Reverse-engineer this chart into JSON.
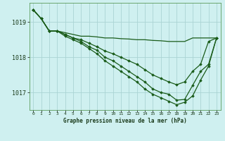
{
  "background_color": "#cff0f0",
  "grid_color": "#aad4d4",
  "line_color": "#1a5c1a",
  "title": "Graphe pression niveau de la mer (hPa)",
  "xlim": [
    -0.5,
    23.5
  ],
  "ylim": [
    1016.5,
    1019.55
  ],
  "yticks": [
    1017,
    1018,
    1019
  ],
  "xlabel_ticks": [
    0,
    1,
    2,
    3,
    4,
    5,
    6,
    7,
    8,
    9,
    10,
    11,
    12,
    13,
    14,
    15,
    16,
    17,
    18,
    19,
    20,
    21,
    22,
    23
  ],
  "series": [
    {
      "data": [
        1019.35,
        1019.1,
        1018.75,
        1018.75,
        1018.7,
        1018.65,
        1018.6,
        1018.6,
        1018.58,
        1018.55,
        1018.55,
        1018.53,
        1018.52,
        1018.5,
        1018.5,
        1018.48,
        1018.47,
        1018.45,
        1018.45,
        1018.45,
        1018.55,
        1018.55,
        1018.55,
        1018.55
      ],
      "marker": false
    },
    {
      "data": [
        1019.35,
        1019.1,
        1018.75,
        1018.75,
        1018.65,
        1018.55,
        1018.5,
        1018.4,
        1018.3,
        1018.18,
        1018.1,
        1018.0,
        1017.9,
        1017.8,
        1017.65,
        1017.5,
        1017.4,
        1017.3,
        1017.22,
        1017.3,
        1017.6,
        1017.8,
        1018.45,
        1018.55
      ],
      "marker": true
    },
    {
      "data": [
        1019.35,
        1019.1,
        1018.75,
        1018.75,
        1018.65,
        1018.55,
        1018.45,
        1018.3,
        1018.2,
        1018.0,
        1017.9,
        1017.75,
        1017.6,
        1017.45,
        1017.3,
        1017.1,
        1017.0,
        1016.95,
        1016.78,
        1016.8,
        1017.2,
        1017.6,
        1017.8,
        1018.55
      ],
      "marker": true
    },
    {
      "data": [
        1019.35,
        1019.1,
        1018.75,
        1018.75,
        1018.6,
        1018.5,
        1018.4,
        1018.25,
        1018.1,
        1017.9,
        1017.75,
        1017.6,
        1017.45,
        1017.3,
        1017.1,
        1016.95,
        1016.85,
        1016.75,
        1016.65,
        1016.72,
        1016.9,
        1017.35,
        1017.75,
        1018.55
      ],
      "marker": true
    }
  ]
}
